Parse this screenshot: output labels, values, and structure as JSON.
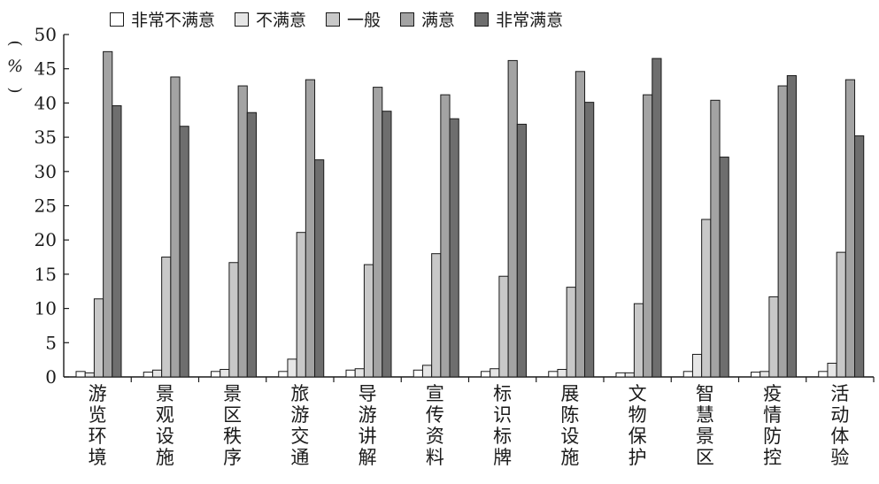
{
  "chart_data": {
    "type": "bar",
    "title": "",
    "xlabel": "",
    "ylabel": "%",
    "ylim": [
      0,
      50
    ],
    "yticks": [
      0,
      5,
      10,
      15,
      20,
      25,
      30,
      35,
      40,
      45,
      50
    ],
    "legend_position": "top",
    "grid": false,
    "categories": [
      "游览环境",
      "景观设施",
      "景区秩序",
      "旅游交通",
      "导游讲解",
      "宣传资料",
      "标识标牌",
      "展陈设施",
      "文物保护",
      "智慧景区",
      "疫情防控",
      "活动体验"
    ],
    "series": [
      {
        "name": "非常不满意",
        "color": "#ffffff",
        "values": [
          0.8,
          0.7,
          0.8,
          0.8,
          1.0,
          1.0,
          0.8,
          0.8,
          0.6,
          0.8,
          0.7,
          0.8
        ]
      },
      {
        "name": "不满意",
        "color": "#e6e6e6",
        "values": [
          0.6,
          1.0,
          1.1,
          2.6,
          1.2,
          1.7,
          1.2,
          1.1,
          0.6,
          3.3,
          0.8,
          2.0
        ]
      },
      {
        "name": "一般",
        "color": "#c8c8c8",
        "values": [
          11.4,
          17.5,
          16.7,
          21.1,
          16.4,
          18.0,
          14.7,
          13.1,
          10.7,
          23.0,
          11.7,
          18.2
        ]
      },
      {
        "name": "满意",
        "color": "#a3a3a3",
        "values": [
          47.5,
          43.8,
          42.5,
          43.4,
          42.3,
          41.2,
          46.2,
          44.6,
          41.2,
          40.4,
          42.5,
          43.4
        ]
      },
      {
        "name": "非常满意",
        "color": "#6e6e6e",
        "values": [
          39.6,
          36.6,
          38.6,
          31.7,
          38.8,
          37.7,
          36.9,
          40.1,
          46.5,
          32.1,
          44.0,
          35.2
        ]
      }
    ]
  }
}
